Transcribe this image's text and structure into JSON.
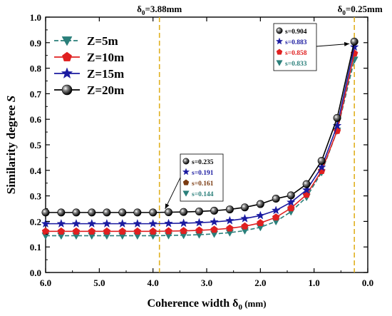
{
  "chart_data": {
    "type": "line",
    "xlabel_main": "Coherence width δ",
    "xlabel_sub": "0",
    "xlabel_unit": " (mm)",
    "ylabel": "Similarity degree ",
    "ylabel_italic": "S",
    "xlim": [
      6.0,
      0.0
    ],
    "ylim": [
      0.0,
      1.0
    ],
    "x_reversed": true,
    "x_ticks": [
      "6.0",
      "5.0",
      "4.0",
      "3.0",
      "2.0",
      "1.0",
      "0.0"
    ],
    "y_ticks": [
      "0.0",
      "0.1",
      "0.2",
      "0.3",
      "0.4",
      "0.5",
      "0.6",
      "0.7",
      "0.8",
      "0.9",
      "1.0"
    ],
    "x": [
      6.0,
      5.71,
      5.43,
      5.14,
      4.86,
      4.57,
      4.29,
      4.0,
      3.71,
      3.43,
      3.14,
      2.86,
      2.57,
      2.29,
      2.0,
      1.71,
      1.43,
      1.14,
      0.86,
      0.57,
      0.25
    ],
    "series": [
      {
        "name": "Z=5m",
        "color": "#2a7f7a",
        "marker": "triangle-down",
        "dashed": true,
        "values": [
          0.144,
          0.144,
          0.144,
          0.144,
          0.144,
          0.144,
          0.144,
          0.144,
          0.145,
          0.146,
          0.148,
          0.151,
          0.156,
          0.164,
          0.177,
          0.2,
          0.238,
          0.295,
          0.392,
          0.555,
          0.833
        ]
      },
      {
        "name": "Z=10m",
        "color": "#e02020",
        "marker": "pentagon",
        "dashed": false,
        "values": [
          0.161,
          0.161,
          0.161,
          0.161,
          0.161,
          0.161,
          0.161,
          0.161,
          0.162,
          0.163,
          0.165,
          0.168,
          0.173,
          0.181,
          0.194,
          0.216,
          0.252,
          0.305,
          0.398,
          0.555,
          0.858
        ]
      },
      {
        "name": "Z=15m",
        "color": "#1a1aa0",
        "marker": "star",
        "dashed": false,
        "values": [
          0.191,
          0.191,
          0.191,
          0.191,
          0.191,
          0.191,
          0.191,
          0.191,
          0.192,
          0.193,
          0.195,
          0.198,
          0.203,
          0.211,
          0.223,
          0.243,
          0.275,
          0.323,
          0.412,
          0.575,
          0.883
        ]
      },
      {
        "name": "Z=20m",
        "color": "#000000",
        "marker": "sphere",
        "dashed": false,
        "values": [
          0.235,
          0.235,
          0.235,
          0.235,
          0.235,
          0.235,
          0.235,
          0.235,
          0.236,
          0.237,
          0.239,
          0.242,
          0.247,
          0.255,
          0.268,
          0.289,
          0.302,
          0.346,
          0.437,
          0.605,
          0.904
        ]
      }
    ],
    "vlines": [
      {
        "x": 3.88,
        "label_pre": "δ",
        "label_sub": "0",
        "label_post": "=3.88mm"
      },
      {
        "x": 0.25,
        "label_pre": "δ",
        "label_sub": "0",
        "label_post": "=0.25mm"
      }
    ],
    "annotation_left": {
      "entries": [
        {
          "label": "s=0.235",
          "color": "#000000",
          "marker": "sphere"
        },
        {
          "label": "s=0.191",
          "color": "#1a1aa0",
          "marker": "star"
        },
        {
          "label": "s=0.161",
          "color": "#7a3a10",
          "marker": "pentagon"
        },
        {
          "label": "s=0.144",
          "color": "#2a7f7a",
          "marker": "triangle-down"
        }
      ]
    },
    "annotation_right": {
      "entries": [
        {
          "label": "s=0.904",
          "color": "#000000",
          "marker": "sphere"
        },
        {
          "label": "s=0.883",
          "color": "#1a1aa0",
          "marker": "star"
        },
        {
          "label": "s=0.858",
          "color": "#e02020",
          "marker": "pentagon"
        },
        {
          "label": "s=0.833",
          "color": "#2a7f7a",
          "marker": "triangle-down"
        }
      ]
    },
    "legend_position": "top-left"
  }
}
